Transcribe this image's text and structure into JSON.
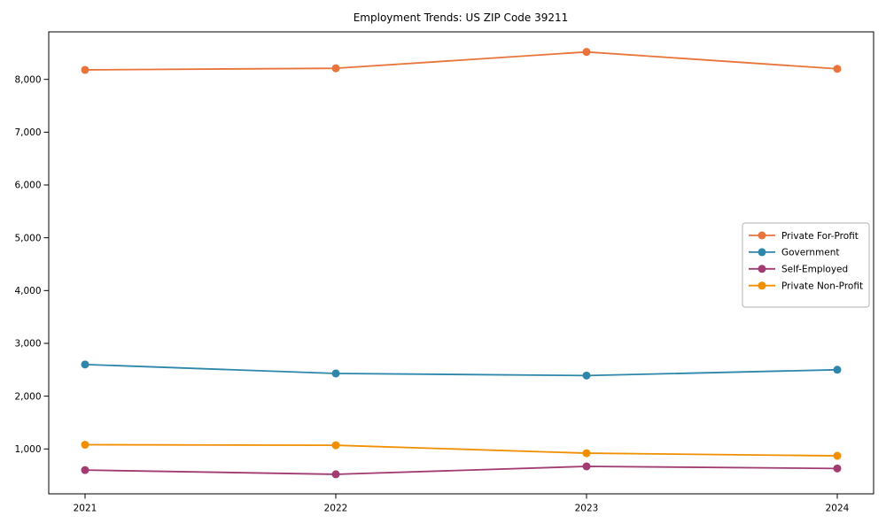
{
  "chart_data": {
    "type": "line",
    "title": "Employment Trends: US ZIP Code 39211",
    "categories": [
      "2021",
      "2022",
      "2023",
      "2024"
    ],
    "series": [
      {
        "name": "Private For-Profit",
        "color": "#E8743B",
        "values": [
          8180,
          8210,
          8520,
          8200
        ]
      },
      {
        "name": "Government",
        "color": "#2E86AB",
        "values": [
          2600,
          2430,
          2390,
          2500
        ]
      },
      {
        "name": "Self-Employed",
        "color": "#A23B72",
        "values": [
          600,
          520,
          670,
          630
        ]
      },
      {
        "name": "Private Non-Profit",
        "color": "#F18F01",
        "values": [
          1080,
          1070,
          920,
          870
        ]
      }
    ],
    "xlabel": "",
    "ylabel": "",
    "ylim": [
      150,
      8900
    ],
    "yticks": [
      1000,
      2000,
      3000,
      4000,
      5000,
      6000,
      7000,
      8000
    ],
    "ytick_labels": [
      "1,000",
      "2,000",
      "3,000",
      "4,000",
      "5,000",
      "6,000",
      "7,000",
      "8,000"
    ],
    "grid": false,
    "legend_position": "center-right",
    "marker": "circle",
    "colors": {
      "axis": "#000000",
      "text": "#000000",
      "legend_border": "#b3b3b3",
      "background": "#ffffff"
    }
  }
}
